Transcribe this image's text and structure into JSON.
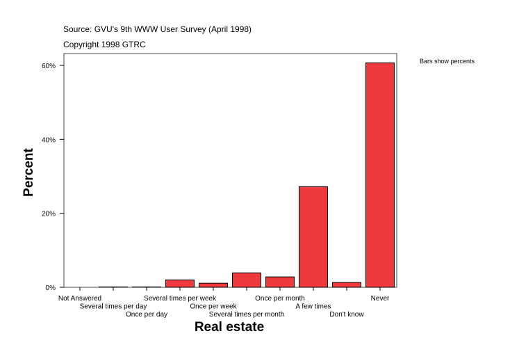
{
  "chart_data": {
    "type": "bar",
    "header_lines": [
      "Source: GVU's 9th WWW User Survey (April 1998)",
      "Copyright 1998 GTRC"
    ],
    "note": "Bars show percents",
    "xlabel": "Real estate",
    "ylabel": "Percent",
    "ylim": [
      0,
      63
    ],
    "yticks": [
      0,
      20,
      40,
      60
    ],
    "ytick_labels": [
      "0%",
      "20%",
      "40%",
      "60%"
    ],
    "grid": false,
    "categories": [
      "Not Answered",
      "Several times per day",
      "Once per day",
      "Several times per week",
      "Once per week",
      "Several times per month",
      "Once per month",
      "A few times",
      "Don't know",
      "Never"
    ],
    "values": [
      0.0,
      0.1,
      0.1,
      2.0,
      1.1,
      3.9,
      2.8,
      27.2,
      1.3,
      60.7
    ],
    "bar_color": "#ee3a3c"
  }
}
